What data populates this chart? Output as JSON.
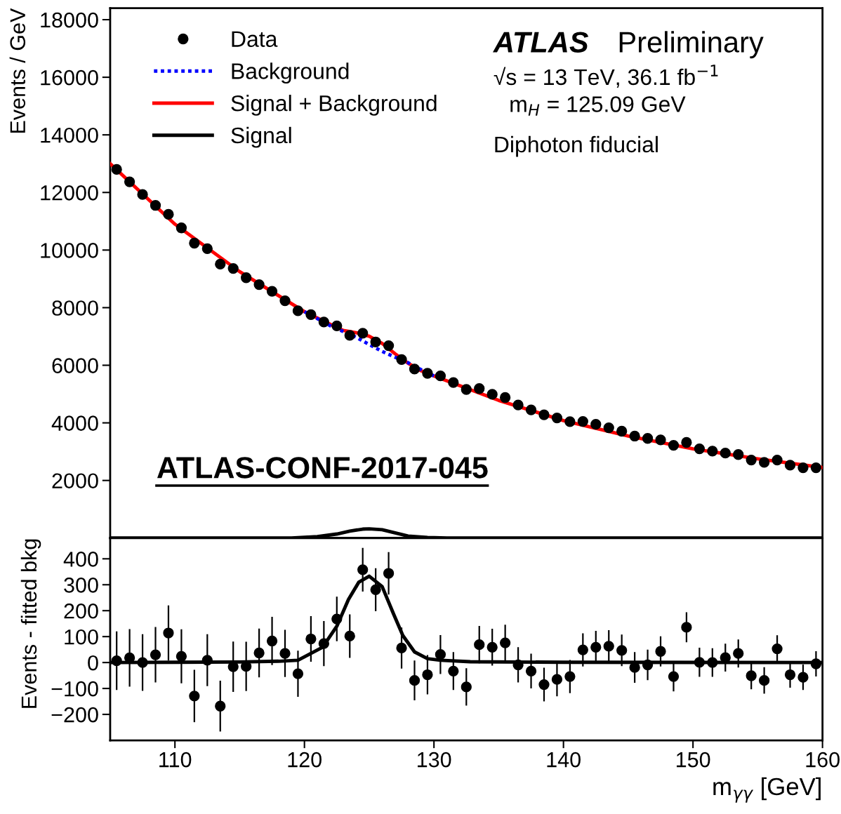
{
  "chart_data": [
    {
      "type": "scatter",
      "ylabel": "Events / GeV",
      "xlim": [
        105,
        160
      ],
      "ylim": [
        0,
        18400
      ],
      "yticks": [
        2000,
        4000,
        6000,
        8000,
        10000,
        12000,
        14000,
        16000,
        18000
      ],
      "tick_labels": "y",
      "legend": "top left",
      "annotations": [
        "ATLAS",
        "Preliminary",
        "√s = 13 TeV, 36.1 fb$^{−1}$",
        "m$_{H}$ = 125.09 GeV",
        "Diphoton fiducial",
        "ATLAS-CONF-2017-045"
      ],
      "series": [
        {
          "name": "Data",
          "marker": "circle",
          "color": "#000000",
          "x": [
            105.5,
            106.5,
            107.5,
            108.5,
            109.5,
            110.5,
            111.5,
            112.5,
            113.5,
            114.5,
            115.5,
            116.5,
            117.5,
            118.5,
            119.5,
            120.5,
            121.5,
            122.5,
            123.5,
            124.5,
            125.5,
            126.5,
            127.5,
            128.5,
            129.5,
            130.5,
            131.5,
            132.5,
            133.5,
            134.5,
            135.5,
            136.5,
            137.5,
            138.5,
            139.5,
            140.5,
            141.5,
            142.5,
            143.5,
            144.5,
            145.5,
            146.5,
            147.5,
            148.5,
            149.5,
            150.5,
            151.5,
            152.5,
            153.5,
            154.5,
            155.5,
            156.5,
            157.5,
            158.5,
            159.5
          ],
          "values": [
            12800,
            12370,
            11930,
            11550,
            11240,
            10770,
            10240,
            10050,
            9510,
            9360,
            9040,
            8800,
            8570,
            8240,
            7890,
            7760,
            7500,
            7370,
            7040,
            7110,
            6810,
            6680,
            6200,
            5870,
            5720,
            5630,
            5400,
            5160,
            5190,
            4990,
            4880,
            4620,
            4450,
            4280,
            4170,
            4040,
            4050,
            3950,
            3830,
            3710,
            3540,
            3460,
            3410,
            3220,
            3320,
            3100,
            3020,
            2950,
            2900,
            2710,
            2630,
            2710,
            2530,
            2440,
            2440
          ]
        },
        {
          "name": "Background",
          "type": "line",
          "line_style": "dotted",
          "color": "#0000ff",
          "x": [
            120,
            121,
            122,
            123,
            124,
            125,
            126,
            127,
            128,
            129,
            130
          ],
          "values": [
            7860,
            7620,
            7370,
            7170,
            6970,
            6720,
            6480,
            6280,
            6090,
            5850,
            5630
          ]
        },
        {
          "name": "Signal + Background",
          "type": "line",
          "line_style": "solid",
          "color": "#ff0000",
          "x": [
            105,
            110,
            115,
            120,
            122,
            123,
            124,
            125,
            126,
            127,
            128,
            129,
            130,
            135,
            140,
            145,
            150,
            155,
            160
          ],
          "values": [
            13000,
            10900,
            9250,
            7860,
            7420,
            7210,
            7130,
            7010,
            6760,
            6400,
            6070,
            5810,
            5630,
            4780,
            4080,
            3540,
            3100,
            2750,
            2450
          ]
        },
        {
          "name": "Signal",
          "type": "line",
          "line_style": "solid",
          "color": "#000000",
          "x": [
            105,
            119,
            121,
            122.5,
            123.5,
            124.5,
            125,
            126,
            127,
            128,
            129.5,
            131,
            160
          ],
          "values": [
            0,
            0,
            50,
            140,
            240,
            310,
            320,
            290,
            180,
            70,
            20,
            0,
            0
          ]
        }
      ]
    },
    {
      "type": "scatter",
      "xlabel": "m$_{γγ}$ [GeV]",
      "ylabel": "Events - fitted bkg",
      "xlim": [
        105,
        160
      ],
      "xticks": [
        110,
        120,
        130,
        140,
        150,
        160
      ],
      "ylim": [
        -300,
        480
      ],
      "yticks": [
        {
          "value": -200,
          "label": "−200"
        },
        {
          "value": -100,
          "label": "−100"
        },
        0,
        100,
        200,
        300,
        400
      ],
      "series": [
        {
          "marker": "circle",
          "color": "#000000",
          "x": [
            105.5,
            106.5,
            107.5,
            108.5,
            109.5,
            110.5,
            111.5,
            112.5,
            113.5,
            114.5,
            115.5,
            116.5,
            117.5,
            118.5,
            119.5,
            120.5,
            121.5,
            122.5,
            123.5,
            124.5,
            125.5,
            126.5,
            127.5,
            128.5,
            129.5,
            130.5,
            131.5,
            132.5,
            133.5,
            134.5,
            135.5,
            136.5,
            137.5,
            138.5,
            139.5,
            140.5,
            141.5,
            142.5,
            143.5,
            144.5,
            145.5,
            146.5,
            147.5,
            148.5,
            149.5,
            150.5,
            151.5,
            152.5,
            153.5,
            154.5,
            155.5,
            156.5,
            157.5,
            158.5,
            159.5
          ],
          "values": [
            7,
            18,
            0,
            30,
            114,
            24,
            -129,
            9,
            -168,
            -16,
            -15,
            37,
            83,
            35,
            -43,
            91,
            73,
            168,
            102,
            358,
            281,
            344,
            56,
            -69,
            -47,
            31,
            -33,
            -94,
            69,
            59,
            76,
            -9,
            -33,
            -85,
            -65,
            -54,
            49,
            59,
            63,
            47,
            -19,
            -9,
            43,
            -54,
            136,
            1,
            0,
            19,
            35,
            -51,
            -69,
            53,
            -47,
            -57,
            -5
          ],
          "errors": [
            113,
            111,
            109,
            107,
            106,
            104,
            101,
            100,
            98,
            97,
            95,
            94,
            93,
            91,
            89,
            88,
            87,
            86,
            84,
            84,
            83,
            82,
            79,
            77,
            76,
            75,
            73,
            72,
            72,
            71,
            70,
            68,
            67,
            65,
            65,
            64,
            64,
            63,
            62,
            61,
            59,
            59,
            58,
            57,
            58,
            56,
            55,
            54,
            54,
            52,
            51,
            52,
            50,
            49,
            49
          ]
        },
        {
          "type": "line",
          "line_style": "solid",
          "color": "#000000",
          "x": [
            105,
            115,
            118,
            119.5,
            121.4,
            122.5,
            123.4,
            124.2,
            125,
            126,
            126.9,
            127.6,
            128.5,
            129.5,
            130.5,
            132.8,
            140,
            160
          ],
          "values": [
            0,
            2,
            5,
            9,
            59,
            140,
            243,
            310,
            333,
            293,
            185,
            104,
            41,
            15,
            9,
            3,
            1,
            0
          ]
        }
      ]
    }
  ]
}
